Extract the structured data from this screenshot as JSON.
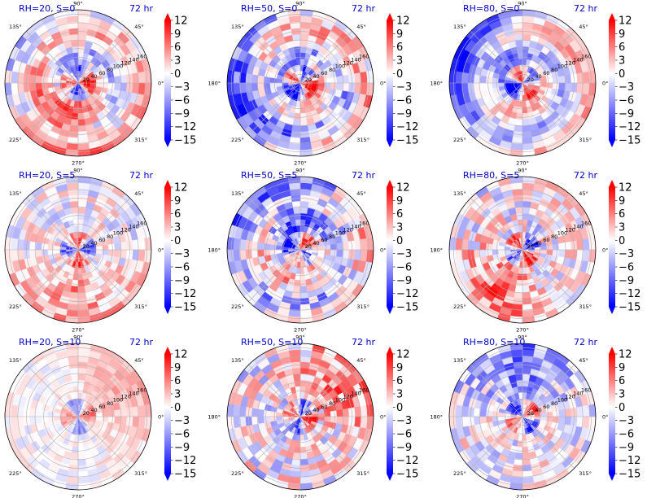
{
  "figure": {
    "time_label": "72 hr",
    "angle_labels": [
      "90°",
      "45°",
      "0°",
      "315°",
      "270°",
      "225°",
      "180°",
      "135°"
    ],
    "radial_labels": [
      "20",
      "40",
      "60",
      "80",
      "100",
      "120",
      "140",
      "160"
    ],
    "colorbar_ticks": [
      "12",
      "9",
      "6",
      "3",
      "0",
      "−3",
      "−6",
      "−9",
      "−12",
      "−15"
    ],
    "colors": {
      "title": "#0000cc",
      "positive": "#ff0000",
      "negative": "#0000ff",
      "neutral": "#ffffff",
      "grid": "#b0b0b0"
    }
  },
  "chart_data": [
    {
      "type": "heatmap",
      "title": "RH=20, S=0",
      "rlim": [
        0,
        170
      ],
      "clim": [
        -15,
        12
      ],
      "grid": true,
      "colormap": "bwr",
      "pattern": {
        "ring_sign": 1,
        "inner_sign": 1,
        "sector_deg": 250,
        "sector_sign": 1,
        "noise": 0.35,
        "strength": 0.9
      }
    },
    {
      "type": "heatmap",
      "title": "RH=50, S=0",
      "rlim": [
        0,
        170
      ],
      "clim": [
        -15,
        12
      ],
      "grid": true,
      "colormap": "bwr",
      "pattern": {
        "ring_sign": 1,
        "inner_sign": 1,
        "sector_deg": 200,
        "sector_sign": -1,
        "noise": 0.45,
        "strength": 0.9
      }
    },
    {
      "type": "heatmap",
      "title": "RH=80, S=0",
      "rlim": [
        0,
        170
      ],
      "clim": [
        -15,
        12
      ],
      "grid": true,
      "colormap": "bwr",
      "pattern": {
        "ring_sign": 1,
        "inner_sign": 1,
        "sector_deg": 150,
        "sector_sign": -1,
        "noise": 0.25,
        "strength": 1.0
      }
    },
    {
      "type": "heatmap",
      "title": "RH=20, S=5",
      "rlim": [
        0,
        170
      ],
      "clim": [
        -15,
        12
      ],
      "grid": true,
      "colormap": "bwr",
      "pattern": {
        "ring_sign": 0,
        "inner_sign": 1,
        "sector_deg": 270,
        "sector_sign": 1,
        "noise": 0.5,
        "strength": 0.7
      }
    },
    {
      "type": "heatmap",
      "title": "RH=50, S=5",
      "rlim": [
        0,
        170
      ],
      "clim": [
        -15,
        12
      ],
      "grid": true,
      "colormap": "bwr",
      "pattern": {
        "ring_sign": 1,
        "inner_sign": 1,
        "sector_deg": 110,
        "sector_sign": -1,
        "noise": 0.55,
        "strength": 0.8
      }
    },
    {
      "type": "heatmap",
      "title": "RH=80, S=5",
      "rlim": [
        0,
        170
      ],
      "clim": [
        -15,
        12
      ],
      "grid": true,
      "colormap": "bwr",
      "pattern": {
        "ring_sign": 0,
        "inner_sign": -1,
        "sector_deg": 240,
        "sector_sign": 1,
        "noise": 0.5,
        "strength": 0.9
      }
    },
    {
      "type": "heatmap",
      "title": "RH=20, S=10",
      "rlim": [
        0,
        170
      ],
      "clim": [
        -15,
        12
      ],
      "grid": true,
      "colormap": "bwr",
      "pattern": {
        "ring_sign": 0,
        "inner_sign": 1,
        "sector_deg": 30,
        "sector_sign": 1,
        "noise": 0.3,
        "strength": 0.55
      }
    },
    {
      "type": "heatmap",
      "title": "RH=50, S=10",
      "rlim": [
        0,
        170
      ],
      "clim": [
        -15,
        12
      ],
      "grid": true,
      "colormap": "bwr",
      "pattern": {
        "ring_sign": 0,
        "inner_sign": 1,
        "sector_deg": 40,
        "sector_sign": 1,
        "noise": 0.6,
        "strength": 0.8
      }
    },
    {
      "type": "heatmap",
      "title": "RH=80, S=10",
      "rlim": [
        0,
        170
      ],
      "clim": [
        -15,
        12
      ],
      "grid": true,
      "colormap": "bwr",
      "pattern": {
        "ring_sign": 0,
        "inner_sign": -1,
        "sector_deg": 90,
        "sector_sign": -1,
        "noise": 0.45,
        "strength": 0.85
      }
    }
  ]
}
